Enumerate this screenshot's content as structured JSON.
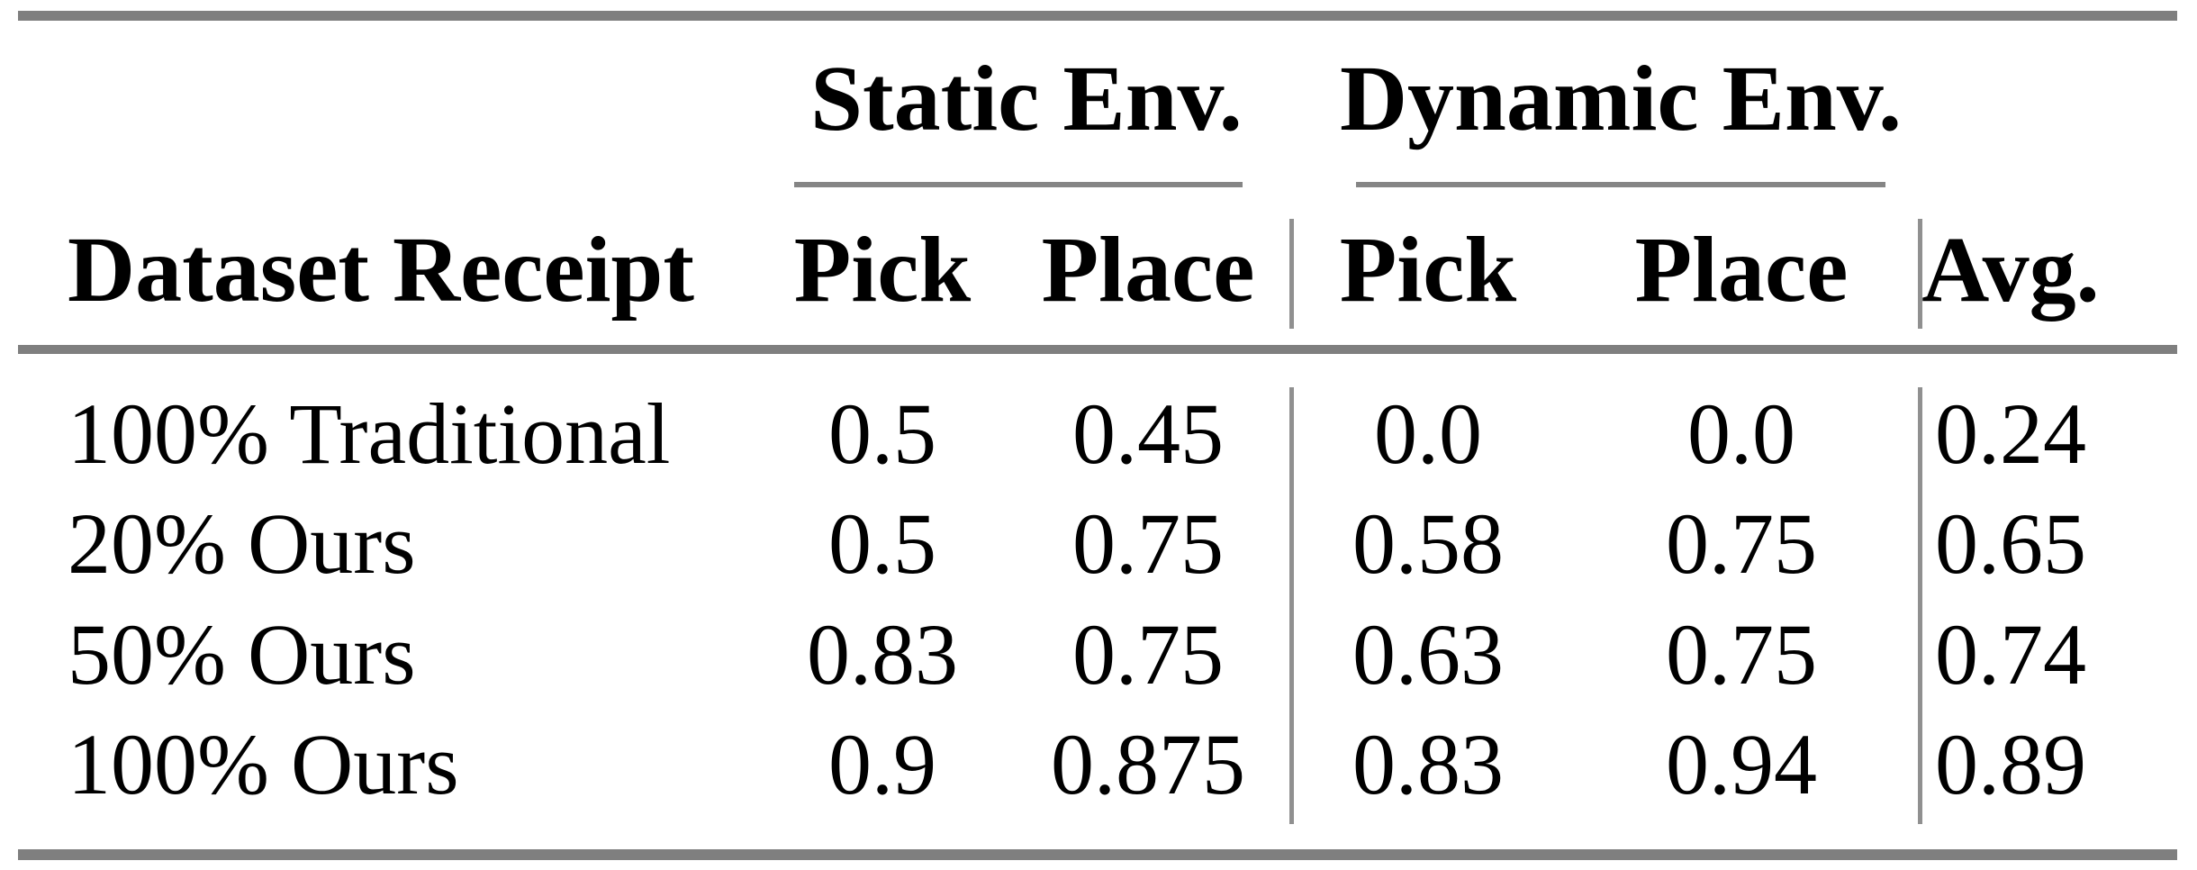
{
  "table": {
    "title_semantic": "Pick-and-place success rates by dataset receipt",
    "col_groups": [
      {
        "label": "Static Env."
      },
      {
        "label": "Dynamic Env."
      }
    ],
    "columns": {
      "dataset": "Dataset Receipt",
      "static_pick": "Pick",
      "static_place": "Place",
      "dynamic_pick": "Pick",
      "dynamic_place": "Place",
      "avg": "Avg."
    },
    "rows": [
      {
        "label": "100% Traditional",
        "static_pick": "0.5",
        "static_place": "0.45",
        "dynamic_pick": "0.0",
        "dynamic_place": "0.0",
        "avg": "0.24"
      },
      {
        "label": "20% Ours",
        "static_pick": "0.5",
        "static_place": "0.75",
        "dynamic_pick": "0.58",
        "dynamic_place": "0.75",
        "avg": "0.65"
      },
      {
        "label": "50% Ours",
        "static_pick": "0.83",
        "static_place": "0.75",
        "dynamic_pick": "0.63",
        "dynamic_place": "0.75",
        "avg": "0.74"
      },
      {
        "label": "100% Ours",
        "static_pick": "0.9",
        "static_place": "0.875",
        "dynamic_pick": "0.83",
        "dynamic_place": "0.94",
        "avg": "0.89"
      }
    ],
    "colors": {
      "rule": "#7f7f7f",
      "divider": "#909090",
      "text": "#000000",
      "background": "#ffffff"
    }
  }
}
